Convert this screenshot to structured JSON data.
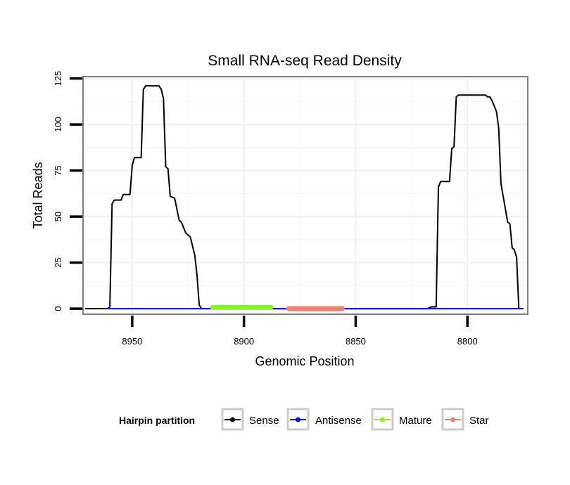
{
  "chart_data": {
    "type": "line",
    "title": "Small RNA-seq Read Density",
    "xlabel": "Genomic Position",
    "ylabel": "Total Reads",
    "xlim": [
      8972,
      8773
    ],
    "ylim": [
      -3,
      126
    ],
    "x_reversed": true,
    "x_ticks": [
      8950,
      8900,
      8850,
      8800
    ],
    "x_tick_labels": [
      "8950",
      "8900",
      "8850",
      "8800"
    ],
    "y_ticks": [
      0,
      25,
      50,
      75,
      100,
      125
    ],
    "y_tick_labels": [
      "0",
      "25",
      "50",
      "75",
      "100",
      "125"
    ],
    "grid": true,
    "legend": {
      "title": "Hairpin partition",
      "position": "bottom",
      "entries": [
        {
          "name": "Sense",
          "color": "#000000"
        },
        {
          "name": "Antisense",
          "color": "#0000ff"
        },
        {
          "name": "Mature",
          "color": "#7fff00"
        },
        {
          "name": "Star",
          "color": "#f08070"
        }
      ]
    },
    "series": [
      {
        "name": "Sense",
        "color": "#000000",
        "points": [
          [
            8971,
            0
          ],
          [
            8961,
            0
          ],
          [
            8960,
            1
          ],
          [
            8959,
            57
          ],
          [
            8958,
            59
          ],
          [
            8955,
            59
          ],
          [
            8954,
            62
          ],
          [
            8951,
            62
          ],
          [
            8950,
            78
          ],
          [
            8949,
            82
          ],
          [
            8946,
            82
          ],
          [
            8945,
            119
          ],
          [
            8944,
            121
          ],
          [
            8938,
            121
          ],
          [
            8937,
            119
          ],
          [
            8936,
            114
          ],
          [
            8935,
            77
          ],
          [
            8934,
            76
          ],
          [
            8933,
            61
          ],
          [
            8931,
            60
          ],
          [
            8929,
            48
          ],
          [
            8928,
            47
          ],
          [
            8926,
            41
          ],
          [
            8924,
            39
          ],
          [
            8922,
            29
          ],
          [
            8921,
            18
          ],
          [
            8920,
            2
          ],
          [
            8919,
            0
          ],
          [
            8818,
            0
          ],
          [
            8816,
            1
          ],
          [
            8814,
            1
          ],
          [
            8813,
            66
          ],
          [
            8812,
            69
          ],
          [
            8808,
            69
          ],
          [
            8807,
            87
          ],
          [
            8806,
            88
          ],
          [
            8805,
            115
          ],
          [
            8804,
            116
          ],
          [
            8792,
            116
          ],
          [
            8791,
            115
          ],
          [
            8790,
            115
          ],
          [
            8789,
            113
          ],
          [
            8787,
            107
          ],
          [
            8786,
            98
          ],
          [
            8785,
            68
          ],
          [
            8782,
            47
          ],
          [
            8781,
            46
          ],
          [
            8780,
            33
          ],
          [
            8779,
            32
          ],
          [
            8778,
            28
          ],
          [
            8777,
            0
          ],
          [
            8775,
            0
          ]
        ]
      },
      {
        "name": "Antisense",
        "color": "#0000ff",
        "points": [
          [
            8961,
            0
          ],
          [
            8914,
            0
          ],
          [
            8813,
            0
          ],
          [
            8777,
            0
          ]
        ]
      },
      {
        "name": "Mature",
        "color": "#7fff00",
        "points": [
          [
            8914,
            0.7
          ],
          [
            8888,
            0.7
          ]
        ]
      },
      {
        "name": "Star",
        "color": "#f08070",
        "points": [
          [
            8880,
            0
          ],
          [
            8856,
            0
          ]
        ]
      }
    ]
  }
}
